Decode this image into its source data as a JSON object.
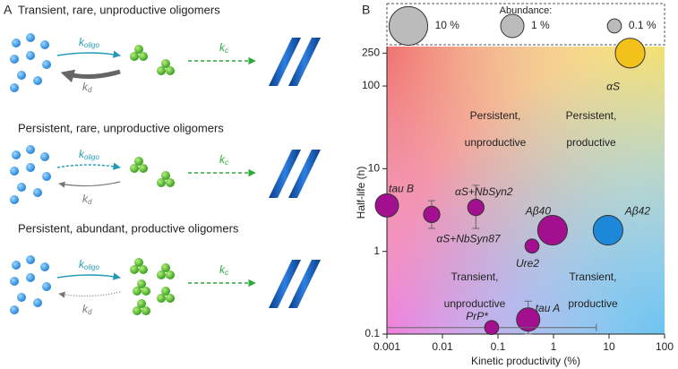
{
  "panel_a": {
    "label": "A",
    "rows": [
      {
        "title": "Transient, rare, unproductive oligomers"
      },
      {
        "title": "Persistent, rare, unproductive oligomers"
      },
      {
        "title": "Persistent, abundant, productive oligomers"
      }
    ],
    "rate_symbol": "k",
    "oligo": "oligo",
    "d": "d",
    "c": "c"
  },
  "chart_data": {
    "type": "scatter",
    "panel_label": "B",
    "x_label": "Kinetic productivity (%)",
    "y_label": "Half-life (h)",
    "log_x": true,
    "log_y": true,
    "xlim": [
      0.001,
      100
    ],
    "ylim": [
      0.1,
      300
    ],
    "xticks": [
      0.001,
      0.01,
      0.1,
      1,
      10,
      100
    ],
    "yticks": [
      0.1,
      1,
      10,
      100,
      250
    ],
    "size_legend": {
      "title": "Abundance:",
      "items": [
        {
          "value": 10,
          "label": "10 %"
        },
        {
          "value": 1,
          "label": "1 %"
        },
        {
          "value": 0.1,
          "label": "0.1 %"
        }
      ]
    },
    "regions": [
      "Persistent,",
      "unproductive",
      "Persistent,",
      "productive",
      "Transient,",
      "unproductive",
      "Transient,",
      "productive"
    ],
    "series": [
      {
        "labels": [
          "αS",
          "tau B",
          "αS+NbSyn87",
          "αS+NbSyn2",
          "Aβ40",
          "Ure2",
          "Aβ42",
          "tau A",
          "PrP*"
        ],
        "x": [
          24,
          0.001,
          0.0064,
          0.04,
          0.96,
          0.41,
          9.6,
          0.35,
          0.077
        ],
        "values": [
          250,
          3.6,
          2.8,
          3.4,
          1.8,
          1.16,
          1.8,
          0.15,
          0.12
        ],
        "sizes": [
          3,
          1,
          0.2,
          0.2,
          3,
          0.1,
          3,
          1,
          0.1
        ],
        "y_low": [
          null,
          null,
          1.9,
          1.9,
          null,
          null,
          null,
          0.1,
          null
        ],
        "y_high": [
          null,
          null,
          4.1,
          6.3,
          null,
          null,
          null,
          0.25,
          null
        ],
        "x_high": [
          null,
          null,
          null,
          null,
          null,
          null,
          null,
          null,
          5.9
        ],
        "colors": [
          "#f2c21a",
          "#a3108f",
          "#a3108f",
          "#a3108f",
          "#a3108f",
          "#a3108f",
          "#1e88d8",
          "#a3108f",
          "#a3108f"
        ]
      }
    ]
  }
}
